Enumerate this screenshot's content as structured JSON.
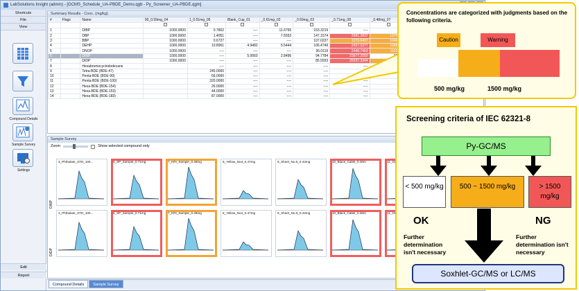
{
  "window": {
    "title": "LabSolutions Insight (admin) - [GCMS_Schedule_UA-PBDE_Demo.qgb - Py_Screener_UA-PBDE.qgm]"
  },
  "nav": {
    "shortcuts": "Shortcuts",
    "file": "File",
    "view": "View",
    "compound_details": "Compound Details",
    "sample_survey": "Sample Survey",
    "settings": "Settings",
    "edit": "Edit",
    "report": "Report"
  },
  "summary": {
    "title": "Summary Results - Conc. (mg/kg)",
    "columns": [
      "#",
      "Flags",
      "Name",
      "00_0.59mg_04",
      "1_0.51mg_05",
      "Blank_Cup_01",
      "_0.61mg_02",
      "_0.59mg_03",
      "_0.71mg_08",
      "_0.48mg_07",
      "4_0.47mg_09",
      "_0.4"
    ],
    "rows": [
      [
        "1",
        "",
        "DIBP",
        "1000.0000",
        "0.7802",
        "----",
        "11.6765",
        "153.3219",
        "----",
        "----",
        "----",
        "9.8251"
      ],
      [
        "2",
        "",
        "DBP",
        "1000.0000",
        "1.4051",
        "----",
        "7.5553",
        "147.1574",
        "2681.2837",
        "1274.0644",
        "----",
        "20.7940"
      ],
      [
        "3",
        "",
        "BBP",
        "1000.0000",
        "0.6727",
        "----",
        "----",
        "107.0227",
        "1279.9437",
        "1046.3143",
        "----",
        "3.0435"
      ],
      [
        "4",
        "",
        "DEHP",
        "1000.0000",
        "10.8961",
        "4.9482",
        "5.5444",
        "106.4749",
        "2427.0377",
        "1188.2740",
        "----",
        "72.0398"
      ],
      [
        "5",
        "",
        "DNOP",
        "1000.0000",
        "----",
        "----",
        "----",
        "95.0119",
        "2448.7463",
        "1162.9691",
        "----",
        "----"
      ],
      [
        "6",
        "",
        "DINP",
        "1000.0000",
        "----",
        "5.0660",
        "2.8496",
        "94.7784",
        "23677.2050",
        "33.8133",
        "179.2650",
        "----"
      ],
      [
        "7",
        "",
        "DIDP",
        "1000.0000",
        "----",
        "----",
        "----",
        "85.5553",
        "25537.3344",
        "1149.2226",
        "----",
        "----"
      ],
      [
        "8",
        "",
        "Hexabromocyclododecane",
        "",
        "----",
        "----",
        "----",
        "----",
        "----",
        "----",
        "----",
        "----"
      ],
      [
        "9",
        "",
        "Tetra-BDE (BDE-47)",
        "",
        "245.0000",
        "----",
        "----",
        "----",
        "----",
        "----",
        "----",
        "----"
      ],
      [
        "10",
        "",
        "Penta-BDE (BDE-99)",
        "",
        "66.0000",
        "----",
        "----",
        "----",
        "----",
        "----",
        "----",
        "----"
      ],
      [
        "11",
        "",
        "Penta-BDE (BDE-100)",
        "",
        "320.0000",
        "----",
        "----",
        "----",
        "----",
        "----",
        "----",
        "----"
      ],
      [
        "12",
        "",
        "Hexa-BDE (BDE-154)",
        "",
        "26.0000",
        "----",
        "----",
        "----",
        "----",
        "----",
        "----",
        "----"
      ],
      [
        "13",
        "",
        "Hexa-BDE (BDE-153)",
        "",
        "44.0000",
        "----",
        "----",
        "----",
        "----",
        "----",
        "----",
        "----"
      ],
      [
        "14",
        "",
        "Hexa-BDE (BDE-183)",
        "",
        "87.0000",
        "----",
        "----",
        "----",
        "----",
        "----",
        "----",
        "----"
      ]
    ]
  },
  "survey": {
    "title": "Sample Survey",
    "zoom_label": "Zoom",
    "show_selected_label": "Show selected compound only",
    "row_labels": [
      "DINP",
      "DIDP"
    ],
    "samples": [
      "3_Phthalate_STD_100...",
      "5_SP_Sample_0.71mg",
      "7_KRI_Sample_0.48mg",
      "8_Yellow_No4_0.47mg",
      "9_Sheet_No.5_0.42mg",
      "10_Black_Cable_0.46m",
      "11_Gray_Cable_0."
    ],
    "bottom_samples": [
      "3_Phthalate_STD_100...",
      "5_SP_Sample_0.71mg",
      "7_KRI_Sample_0.48mg",
      "8_Yellow_No4_0.47mg",
      "9_Sheet_No.5_0.42mg",
      "10_Black_Cable_0.46m",
      "11_Gray_Cable_0."
    ]
  },
  "tabs": [
    "Compound Details",
    "Sample Survey"
  ],
  "callout": {
    "text": "Concentrations are categorized with judgments based on the following  criteria.",
    "caution": "Caution",
    "warning": "Warning",
    "label_500": "500 mg/kg",
    "label_1500": "1500 mg/kg",
    "colors": {
      "caution": "#f6ad1a",
      "warning": "#f25757",
      "frame": "#f3c800"
    }
  },
  "screening": {
    "title": "Screening criteria of IEC 62321-8",
    "method": "Py-GC/MS",
    "low": "< 500 mg/kg",
    "mid": "500 ~ 1500 mg/kg",
    "high": "> 1500 mg/kg",
    "ok": "OK",
    "ng": "NG",
    "further_left": "Further determination isn't necessary",
    "further_right": "Further determination isn't necessary",
    "final": "Soxhlet-GC/MS  or LC/MS"
  }
}
